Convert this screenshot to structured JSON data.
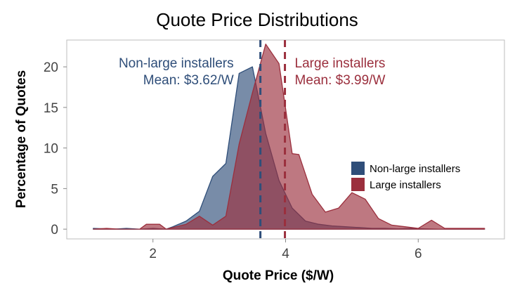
{
  "chart_data": {
    "type": "area",
    "title": "Quote Price Distributions",
    "xlabel": "Quote Price ($/W)",
    "ylabel": "Percentage of Quotes",
    "xlim": [
      0.7,
      7.3
    ],
    "ylim": [
      -1.2,
      23.3
    ],
    "x_ticks": [
      2,
      4,
      6
    ],
    "y_ticks": [
      0,
      5,
      10,
      15,
      20
    ],
    "grid": false,
    "legend_position": "right",
    "series": [
      {
        "name": "Non-large installers",
        "color": "#2f4e79",
        "mean": 3.62,
        "annotation_lines": [
          "Non-large installers",
          "Mean: $3.62/W"
        ],
        "points": [
          [
            1.1,
            0.1
          ],
          [
            1.4,
            0.0
          ],
          [
            1.6,
            0.1
          ],
          [
            1.8,
            0.0
          ],
          [
            2.0,
            0.1
          ],
          [
            2.2,
            0.0
          ],
          [
            2.3,
            0.3
          ],
          [
            2.5,
            1.0
          ],
          [
            2.7,
            2.2
          ],
          [
            2.9,
            6.5
          ],
          [
            3.1,
            8.1
          ],
          [
            3.3,
            19.2
          ],
          [
            3.5,
            20.0
          ],
          [
            3.7,
            11.8
          ],
          [
            3.9,
            6.0
          ],
          [
            4.1,
            2.6
          ],
          [
            4.3,
            1.0
          ],
          [
            4.5,
            0.6
          ],
          [
            4.7,
            0.4
          ],
          [
            4.9,
            0.3
          ],
          [
            5.1,
            0.2
          ],
          [
            5.3,
            0.1
          ],
          [
            5.5,
            0.1
          ],
          [
            5.7,
            0.05
          ],
          [
            5.9,
            0.1
          ],
          [
            6.1,
            0.05
          ],
          [
            6.3,
            0.0
          ],
          [
            6.5,
            0.0
          ],
          [
            7.0,
            0.0
          ]
        ]
      },
      {
        "name": "Large installers",
        "color": "#9b2f3d",
        "mean": 3.99,
        "annotation_lines": [
          "Large installers",
          "Mean: $3.99/W"
        ],
        "points": [
          [
            1.1,
            0.0
          ],
          [
            1.3,
            0.1
          ],
          [
            1.5,
            0.0
          ],
          [
            1.8,
            0.0
          ],
          [
            1.9,
            0.6
          ],
          [
            2.1,
            0.6
          ],
          [
            2.2,
            0.0
          ],
          [
            2.5,
            0.6
          ],
          [
            2.7,
            1.6
          ],
          [
            2.9,
            0.5
          ],
          [
            3.1,
            1.6
          ],
          [
            3.3,
            10.5
          ],
          [
            3.5,
            16.8
          ],
          [
            3.7,
            22.8
          ],
          [
            3.9,
            20.4
          ],
          [
            4.1,
            9.3
          ],
          [
            4.2,
            9.2
          ],
          [
            4.4,
            4.3
          ],
          [
            4.6,
            2.1
          ],
          [
            4.8,
            2.6
          ],
          [
            5.0,
            4.5
          ],
          [
            5.2,
            3.7
          ],
          [
            5.4,
            1.3
          ],
          [
            5.6,
            0.5
          ],
          [
            5.8,
            0.3
          ],
          [
            6.0,
            0.1
          ],
          [
            6.2,
            1.1
          ],
          [
            6.4,
            0.1
          ],
          [
            6.6,
            0.1
          ],
          [
            7.0,
            0.1
          ]
        ]
      }
    ]
  }
}
